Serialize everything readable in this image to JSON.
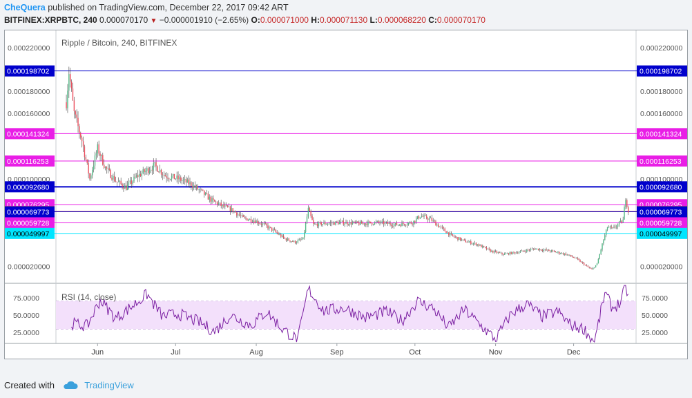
{
  "header": {
    "author": "CheQuera",
    "published": "published on TradingView.com, December 22, 2017 09:42 ART"
  },
  "symbol_line": {
    "symbol": "BITFINEX:XRPBTC, 240",
    "last": "0.000070170",
    "change": "−0.000001910 (−2.65%)",
    "o_label": "O:",
    "o": "0.000071000",
    "h_label": "H:",
    "h": "0.000071130",
    "l_label": "L:",
    "l": "0.000068220",
    "c_label": "C:",
    "c": "0.000070170"
  },
  "footer": {
    "created_with": "Created with",
    "brand": "TradingView",
    "brand_icon": "cloud-icon"
  },
  "colors": {
    "magenta_level": "#e91ee6",
    "blue_level": "#0000cc",
    "cyan_level": "#00e5ff",
    "last_price": "#e06a62",
    "rsi_line": "#7b1fa2",
    "rsi_band": "#f3e0fb",
    "candle_up": "#53b987",
    "candle_down": "#eb4d5c"
  },
  "chart_data": [
    {
      "type": "candlestick",
      "title": "Ripple / Bitcoin, 240, BITFINEX",
      "y_ticks": [
        "0.000220000",
        "0.000180000",
        "0.000160000",
        "0.000100000",
        "0.000020000"
      ],
      "x_ticks": [
        "Jun",
        "Jul",
        "Aug",
        "Sep",
        "Oct",
        "Nov",
        "Dec"
      ],
      "ylim": [
        5e-06,
        0.000232
      ],
      "horizontal_levels": [
        {
          "value": 0.000198702,
          "label": "0.000198702",
          "color": "blue"
        },
        {
          "value": 0.000141324,
          "label": "0.000141324",
          "color": "magenta"
        },
        {
          "value": 0.000116253,
          "label": "0.000116253",
          "color": "magenta"
        },
        {
          "value": 9.268e-05,
          "label": "0.000092680",
          "color": "blue"
        },
        {
          "value": 7.6295e-05,
          "label": "0.000076295",
          "color": "magenta"
        },
        {
          "value": 7.017e-05,
          "label": "0.000070170",
          "color": "last"
        },
        {
          "value": 6.9773e-05,
          "label": "0.000069773",
          "color": "blue"
        },
        {
          "value": 5.9728e-05,
          "label": "0.000059728",
          "color": "magenta"
        },
        {
          "value": 4.9997e-05,
          "label": "0.000049997",
          "color": "cyan"
        }
      ],
      "price_path": [
        {
          "date": "2017-05-20",
          "price": 0.00017
        },
        {
          "date": "2017-05-21",
          "price": 0.000198
        },
        {
          "date": "2017-05-23",
          "price": 0.00016
        },
        {
          "date": "2017-05-26",
          "price": 0.000135
        },
        {
          "date": "2017-05-29",
          "price": 0.0001
        },
        {
          "date": "2017-06-01",
          "price": 0.000128
        },
        {
          "date": "2017-06-04",
          "price": 0.00011
        },
        {
          "date": "2017-06-08",
          "price": 9.8e-05
        },
        {
          "date": "2017-06-12",
          "price": 9.2e-05
        },
        {
          "date": "2017-06-16",
          "price": 0.000102
        },
        {
          "date": "2017-06-20",
          "price": 0.000108
        },
        {
          "date": "2017-06-23",
          "price": 0.000112
        },
        {
          "date": "2017-06-27",
          "price": 0.000103
        },
        {
          "date": "2017-07-02",
          "price": 0.0001
        },
        {
          "date": "2017-07-07",
          "price": 9.5e-05
        },
        {
          "date": "2017-07-11",
          "price": 8.8e-05
        },
        {
          "date": "2017-07-15",
          "price": 8e-05
        },
        {
          "date": "2017-07-19",
          "price": 7.5e-05
        },
        {
          "date": "2017-07-23",
          "price": 7.1e-05
        },
        {
          "date": "2017-07-27",
          "price": 6.4e-05
        },
        {
          "date": "2017-07-31",
          "price": 6.2e-05
        },
        {
          "date": "2017-08-04",
          "price": 5.8e-05
        },
        {
          "date": "2017-08-08",
          "price": 5.2e-05
        },
        {
          "date": "2017-08-12",
          "price": 4.5e-05
        },
        {
          "date": "2017-08-16",
          "price": 4.2e-05
        },
        {
          "date": "2017-08-19",
          "price": 4.5e-05
        },
        {
          "date": "2017-08-21",
          "price": 7.2e-05
        },
        {
          "date": "2017-08-23",
          "price": 5.8e-05
        },
        {
          "date": "2017-08-27",
          "price": 5.9e-05
        },
        {
          "date": "2017-09-03",
          "price": 6e-05
        },
        {
          "date": "2017-09-10",
          "price": 5.9e-05
        },
        {
          "date": "2017-09-17",
          "price": 6e-05
        },
        {
          "date": "2017-09-24",
          "price": 5.8e-05
        },
        {
          "date": "2017-09-30",
          "price": 6e-05
        },
        {
          "date": "2017-10-03",
          "price": 6.6e-05
        },
        {
          "date": "2017-10-07",
          "price": 6.3e-05
        },
        {
          "date": "2017-10-10",
          "price": 5.7e-05
        },
        {
          "date": "2017-10-15",
          "price": 4.8e-05
        },
        {
          "date": "2017-10-20",
          "price": 4.3e-05
        },
        {
          "date": "2017-10-25",
          "price": 4e-05
        },
        {
          "date": "2017-10-30",
          "price": 3.4e-05
        },
        {
          "date": "2017-11-04",
          "price": 3.1e-05
        },
        {
          "date": "2017-11-10",
          "price": 3.3e-05
        },
        {
          "date": "2017-11-16",
          "price": 3.6e-05
        },
        {
          "date": "2017-11-22",
          "price": 3.4e-05
        },
        {
          "date": "2017-11-28",
          "price": 3.1e-05
        },
        {
          "date": "2017-12-02",
          "price": 2.7e-05
        },
        {
          "date": "2017-12-06",
          "price": 2e-05
        },
        {
          "date": "2017-12-08",
          "price": 1.7e-05
        },
        {
          "date": "2017-12-10",
          "price": 2.2e-05
        },
        {
          "date": "2017-12-12",
          "price": 4e-05
        },
        {
          "date": "2017-12-14",
          "price": 5.6e-05
        },
        {
          "date": "2017-12-16",
          "price": 5.4e-05
        },
        {
          "date": "2017-12-18",
          "price": 5.8e-05
        },
        {
          "date": "2017-12-20",
          "price": 6.2e-05
        },
        {
          "date": "2017-12-21",
          "price": 8.3e-05
        },
        {
          "date": "2017-12-22",
          "price": 7e-05
        }
      ]
    },
    {
      "type": "line",
      "title": "RSI (14, close)",
      "y_ticks": [
        "75.0000",
        "50.0000",
        "25.0000"
      ],
      "ylim": [
        10,
        94
      ],
      "band": [
        30,
        70
      ],
      "rsi_path": [
        {
          "date": "2017-05-22",
          "value": 38
        },
        {
          "date": "2017-05-28",
          "value": 34
        },
        {
          "date": "2017-06-02",
          "value": 72
        },
        {
          "date": "2017-06-08",
          "value": 45
        },
        {
          "date": "2017-06-14",
          "value": 62
        },
        {
          "date": "2017-06-20",
          "value": 80
        },
        {
          "date": "2017-06-26",
          "value": 48
        },
        {
          "date": "2017-07-02",
          "value": 52
        },
        {
          "date": "2017-07-10",
          "value": 40
        },
        {
          "date": "2017-07-16",
          "value": 26
        },
        {
          "date": "2017-07-22",
          "value": 50
        },
        {
          "date": "2017-07-30",
          "value": 35
        },
        {
          "date": "2017-08-05",
          "value": 55
        },
        {
          "date": "2017-08-11",
          "value": 30
        },
        {
          "date": "2017-08-17",
          "value": 14
        },
        {
          "date": "2017-08-21",
          "value": 88
        },
        {
          "date": "2017-08-27",
          "value": 56
        },
        {
          "date": "2017-09-04",
          "value": 60
        },
        {
          "date": "2017-09-12",
          "value": 46
        },
        {
          "date": "2017-09-20",
          "value": 55
        },
        {
          "date": "2017-09-26",
          "value": 42
        },
        {
          "date": "2017-10-02",
          "value": 70
        },
        {
          "date": "2017-10-08",
          "value": 60
        },
        {
          "date": "2017-10-14",
          "value": 32
        },
        {
          "date": "2017-10-20",
          "value": 58
        },
        {
          "date": "2017-10-26",
          "value": 36
        },
        {
          "date": "2017-11-01",
          "value": 15
        },
        {
          "date": "2017-11-07",
          "value": 52
        },
        {
          "date": "2017-11-13",
          "value": 66
        },
        {
          "date": "2017-11-19",
          "value": 48
        },
        {
          "date": "2017-11-25",
          "value": 55
        },
        {
          "date": "2017-11-30",
          "value": 35
        },
        {
          "date": "2017-12-05",
          "value": 30
        },
        {
          "date": "2017-12-09",
          "value": 10
        },
        {
          "date": "2017-12-13",
          "value": 82
        },
        {
          "date": "2017-12-16",
          "value": 60
        },
        {
          "date": "2017-12-19",
          "value": 68
        },
        {
          "date": "2017-12-21",
          "value": 92
        },
        {
          "date": "2017-12-22",
          "value": 78
        }
      ]
    }
  ]
}
